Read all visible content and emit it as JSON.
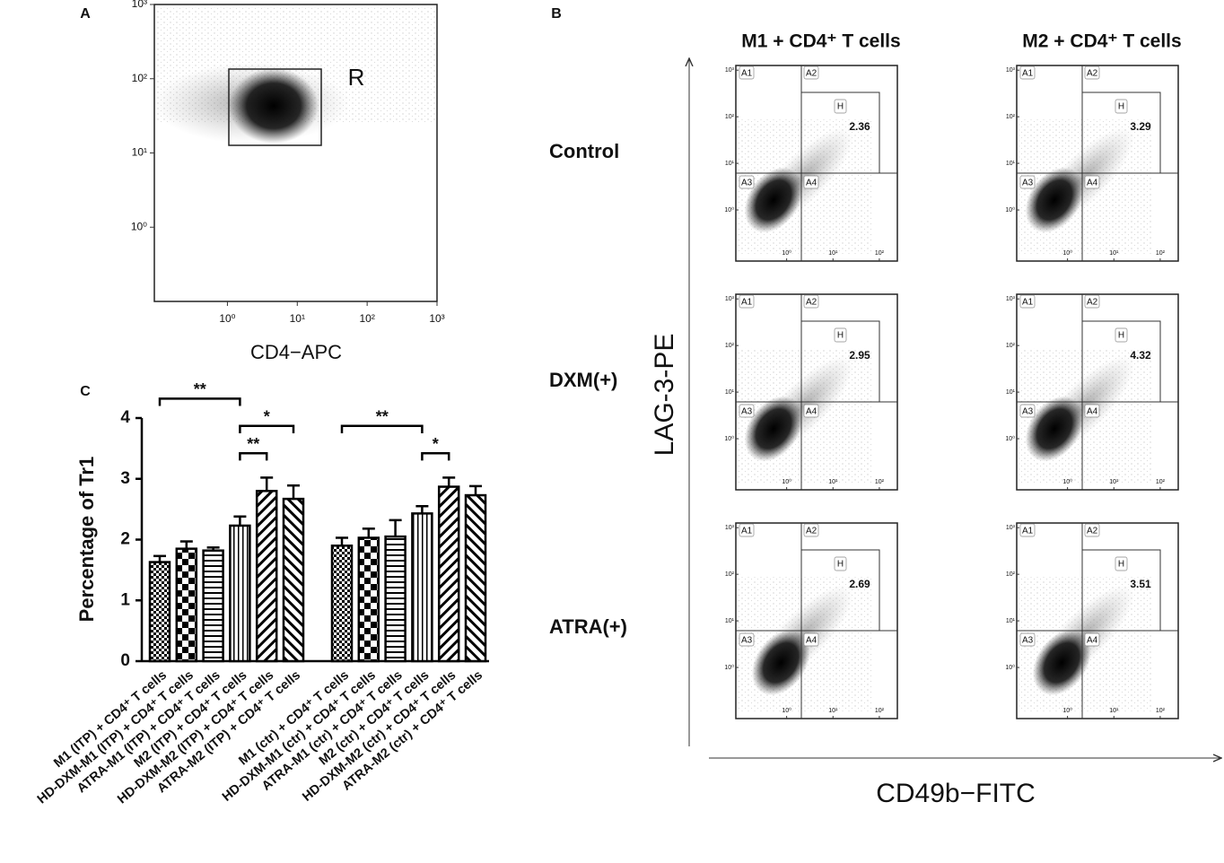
{
  "chart_data": [
    {
      "type": "scatter",
      "label": "A",
      "x_label": "CD4−APC",
      "gate": "R",
      "xscale": "log",
      "yscale": "log",
      "xlim": [
        0.09,
        1000
      ],
      "ylim": [
        0.1,
        1000
      ],
      "xticks": [
        {
          "value": 1,
          "label": "10⁰"
        },
        {
          "value": 10,
          "label": "10¹"
        },
        {
          "value": 100,
          "label": "10²"
        },
        {
          "value": 1000,
          "label": "10³"
        }
      ],
      "yticks": [
        {
          "value": 1,
          "label": "10⁰"
        },
        {
          "value": 10,
          "label": "10¹"
        },
        {
          "value": 100,
          "label": "10²"
        },
        {
          "value": 1000,
          "label": "10³"
        }
      ]
    },
    {
      "type": "flow-grid",
      "label": "B",
      "x_label": "CD49b−FITC",
      "y_label": "LAG-3-PE",
      "columns": [
        "M1 + CD4⁺ T cells",
        "M2 + CD4⁺ T cells"
      ],
      "rows": [
        {
          "name": "Control",
          "values": [
            2.36,
            3.29
          ]
        },
        {
          "name": "DXM(+)",
          "values": [
            2.95,
            4.32
          ]
        },
        {
          "name": "ATRA(+)",
          "values": [
            2.69,
            3.51
          ]
        }
      ],
      "quadrants": [
        "A1",
        "A2",
        "A3",
        "A4"
      ],
      "gate": "H",
      "xscale": "log",
      "yscale": "log",
      "xlim": [
        0.08,
        245
      ],
      "ylim": [
        0.08,
        1260
      ],
      "xticks": [
        {
          "value": 1,
          "label": "10⁰"
        },
        {
          "value": 10,
          "label": "10¹"
        },
        {
          "value": 100,
          "label": "10²"
        }
      ],
      "yticks": [
        {
          "value": 1,
          "label": "10⁰"
        },
        {
          "value": 10,
          "label": "10¹"
        },
        {
          "value": 100,
          "label": "10²"
        },
        {
          "value": 1000,
          "label": "10³"
        }
      ]
    },
    {
      "type": "bar",
      "label": "C",
      "y_label": "Percentage of Tr1",
      "categories": [
        "M1 (ITP) + CD4⁺ T cells",
        "HD-DXM-M1 (ITP) + CD4⁺ T cells",
        "ATRA-M1 (ITP) + CD4⁺ T cells",
        "M2 (ITP) + CD4⁺ T cells",
        "HD-DXM-M2 (ITP) + CD4⁺ T cells",
        "ATRA-M2 (ITP) + CD4⁺ T cells",
        "M1 (ctr) + CD4⁺ T cells",
        "HD-DXM-M1 (ctr) + CD4⁺ T cells",
        "ATRA-M1 (ctr) + CD4⁺ T cells",
        "M2 (ctr) + CD4⁺ T cells",
        "HD-DXM-M2 (ctr) + CD4⁺ T cells",
        "ATRA-M2 (ctr) + CD4⁺ T cells"
      ],
      "values": [
        1.63,
        1.85,
        1.82,
        2.23,
        2.8,
        2.67,
        1.9,
        2.03,
        2.05,
        2.43,
        2.87,
        2.73
      ],
      "errors": [
        0.1,
        0.12,
        0.05,
        0.15,
        0.22,
        0.22,
        0.13,
        0.15,
        0.27,
        0.12,
        0.15,
        0.15
      ],
      "patterns": [
        "dots",
        "checker",
        "hlines",
        "vlines",
        "diag",
        "antidiag",
        "dots",
        "checker",
        "hlines",
        "vlines",
        "diag",
        "antidiag"
      ],
      "ylim": [
        0,
        4
      ],
      "yticks": [
        0,
        1,
        2,
        3,
        4
      ],
      "significance": [
        {
          "from": 3,
          "to": 4,
          "label": "**"
        },
        {
          "from": 3,
          "to": 5,
          "label": "*"
        },
        {
          "from": 0,
          "to": 3,
          "label": "**"
        },
        {
          "from": 9,
          "to": 10,
          "label": "*"
        },
        {
          "from": 6,
          "to": 9,
          "label": "**"
        }
      ]
    }
  ]
}
